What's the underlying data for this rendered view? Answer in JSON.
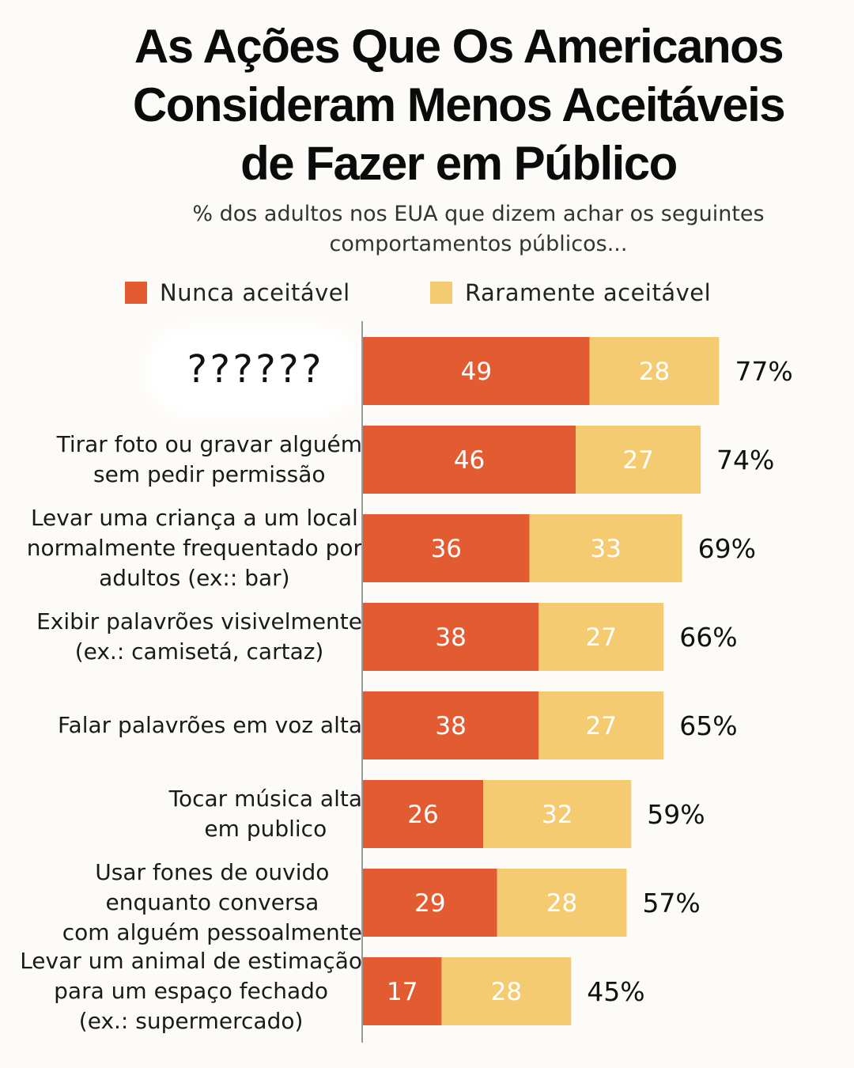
{
  "title": [
    "As Ações Que Os Americanos",
    "Consideram Menos Aceitáveis",
    "de Fazer em Público"
  ],
  "subtitle": [
    "% dos adultos nos EUA que dizem achar os seguintes",
    "comportamentos públicos..."
  ],
  "legend": {
    "never": {
      "label": "Nunca aceitável",
      "color": "#e35b31"
    },
    "rarely": {
      "label": "Raramente aceitável",
      "color": "#f5cb72"
    }
  },
  "hidden_label": "??????",
  "chart_data": {
    "type": "bar",
    "orientation": "horizontal",
    "stacked": true,
    "categories": [
      [
        "??????"
      ],
      [
        "Tirar foto ou gravar alguém",
        "sem pedir permissão"
      ],
      [
        "Levar uma criança a um local",
        "normalmente frequentado por",
        "adultos (ex:: bar)"
      ],
      [
        "Exibir palavrões visivelmente",
        "(ex.: camisetá, cartaz)"
      ],
      [
        "Falar palavrões em voz alta"
      ],
      [
        "Tocar música alta",
        "em publico"
      ],
      [
        "Usar fones de ouvido",
        "enquanto conversa",
        "com alguém pessoalmente"
      ],
      [
        "Levar um animal de estimação",
        "para um espaço fechado",
        "(ex.: supermercado)"
      ]
    ],
    "series": [
      {
        "name": "Nunca aceitável",
        "color": "#e35b31",
        "values": [
          49,
          46,
          36,
          38,
          38,
          26,
          29,
          17
        ]
      },
      {
        "name": "Raramente aceitável",
        "color": "#f5cb72",
        "values": [
          28,
          27,
          33,
          27,
          27,
          32,
          28,
          28
        ]
      }
    ],
    "totals": [
      "77%",
      "74%",
      "69%",
      "66%",
      "65%",
      "59%",
      "57%",
      "45%"
    ],
    "xlim": [
      0,
      77
    ],
    "grid": false,
    "legend_position": "top"
  }
}
